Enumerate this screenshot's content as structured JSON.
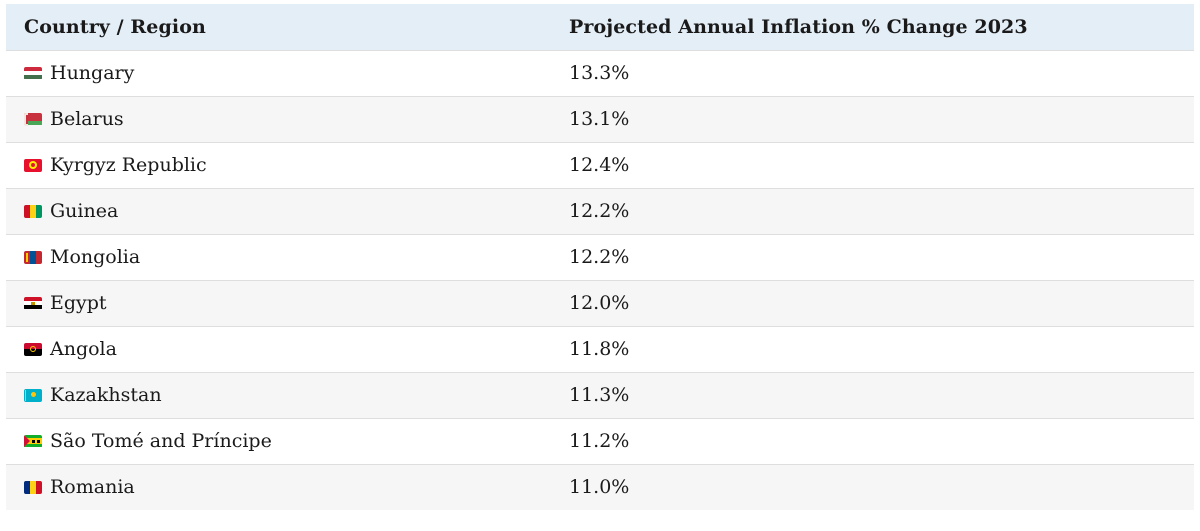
{
  "table": {
    "headers": {
      "country": "Country / Region",
      "inflation": "Projected Annual Inflation % Change 2023"
    },
    "rows": [
      {
        "country": "Hungary",
        "value": "13.3%",
        "flag": "hungary-flag-icon"
      },
      {
        "country": "Belarus",
        "value": "13.1%",
        "flag": "belarus-flag-icon"
      },
      {
        "country": "Kyrgyz Republic",
        "value": "12.4%",
        "flag": "kyrgyz-flag-icon"
      },
      {
        "country": "Guinea",
        "value": "12.2%",
        "flag": "guinea-flag-icon"
      },
      {
        "country": "Mongolia",
        "value": "12.2%",
        "flag": "mongolia-flag-icon"
      },
      {
        "country": "Egypt",
        "value": "12.0%",
        "flag": "egypt-flag-icon"
      },
      {
        "country": "Angola",
        "value": "11.8%",
        "flag": "angola-flag-icon"
      },
      {
        "country": "Kazakhstan",
        "value": "11.3%",
        "flag": "kazakhstan-flag-icon"
      },
      {
        "country": "São Tomé and Príncipe",
        "value": "11.2%",
        "flag": "sao-tome-flag-icon"
      },
      {
        "country": "Romania",
        "value": "11.0%",
        "flag": "romania-flag-icon"
      }
    ]
  },
  "colors": {
    "header_bg": "#e4eef7",
    "row_alt_bg": "#f6f6f6",
    "divider": "#dedede",
    "text": "#1a1a1a"
  }
}
